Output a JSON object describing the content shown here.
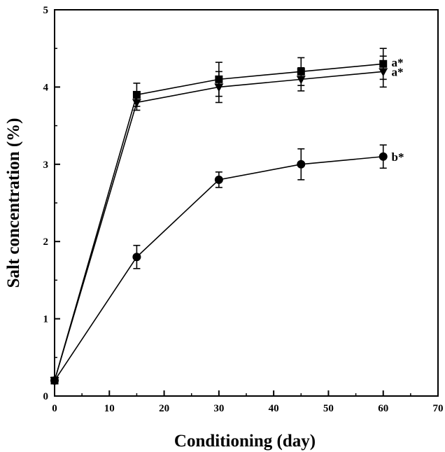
{
  "chart_data": {
    "type": "line",
    "title": "",
    "xlabel": "Conditioning (day)",
    "ylabel": "Salt concentration (%)",
    "xlim": [
      0,
      70
    ],
    "ylim": [
      0,
      5
    ],
    "x_ticks": [
      0,
      10,
      20,
      30,
      40,
      50,
      60,
      70
    ],
    "y_ticks": [
      0,
      1,
      2,
      3,
      4,
      5
    ],
    "grid": false,
    "legend": "none",
    "series": [
      {
        "marker": "square",
        "x": [
          0,
          15,
          30,
          45,
          60
        ],
        "y": [
          0.2,
          3.9,
          4.1,
          4.2,
          4.3
        ],
        "err": [
          0.03,
          0.15,
          0.22,
          0.18,
          0.2
        ]
      },
      {
        "marker": "triangle-down",
        "x": [
          0,
          15,
          30,
          45,
          60
        ],
        "y": [
          0.2,
          3.8,
          4.0,
          4.1,
          4.2
        ],
        "err": [
          0.03,
          0.1,
          0.2,
          0.15,
          0.2
        ]
      },
      {
        "marker": "circle",
        "x": [
          0,
          15,
          30,
          45,
          60
        ],
        "y": [
          0.2,
          1.8,
          2.8,
          3.0,
          3.1
        ],
        "err": [
          0.03,
          0.15,
          0.1,
          0.2,
          0.15
        ]
      }
    ],
    "annotations": [
      {
        "text": "a*",
        "x": 61,
        "y": 4.32
      },
      {
        "text": "a*",
        "x": 61,
        "y": 4.2
      },
      {
        "text": "b*",
        "x": 61,
        "y": 3.1
      }
    ]
  }
}
